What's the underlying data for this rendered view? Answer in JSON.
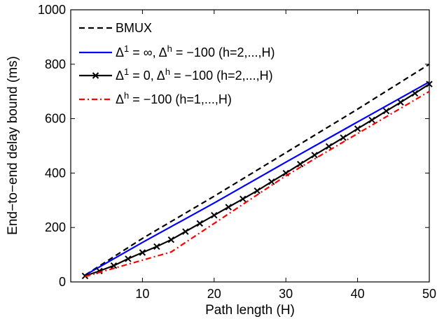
{
  "chart_data": {
    "type": "line",
    "title": "",
    "xlabel": "Path length (H)",
    "ylabel": "End−to−end delay bound (ms)",
    "xlim": [
      0,
      50
    ],
    "ylim": [
      0,
      1000
    ],
    "xticks": [
      10,
      20,
      30,
      40,
      50
    ],
    "yticks": [
      0,
      200,
      400,
      600,
      800,
      1000
    ],
    "grid": false,
    "legend_position": "top-left",
    "series": [
      {
        "name": "BMUX",
        "legend": {
          "a": "BMUX"
        },
        "color": "#000000",
        "style": "dashed",
        "marker": "none",
        "x": [
          2,
          10,
          20,
          30,
          40,
          50
        ],
        "y": [
          25,
          160,
          315,
          475,
          635,
          800
        ]
      },
      {
        "name": "Δ1 = ∞, Δh = −100 (h=2,...,H)",
        "legend": {
          "a": "Δ",
          "s1": "1",
          "b": " = ∞, Δ",
          "s2": "h",
          "c": " = −100 (h=2,...,H)"
        },
        "color": "#0000ff",
        "style": "solid",
        "marker": "none",
        "x": [
          2,
          10,
          20,
          30,
          40,
          50
        ],
        "y": [
          25,
          145,
          290,
          440,
          588,
          735
        ]
      },
      {
        "name": "Δ1 = 0, Δh = −100 (h=2,...,H)",
        "legend": {
          "a": "Δ",
          "s1": "1",
          "b": " = 0, Δ",
          "s2": "h",
          "c": " = −100 (h=2,...,H)"
        },
        "color": "#000000",
        "style": "solid",
        "marker": "x",
        "x": [
          2,
          4,
          6,
          8,
          10,
          12,
          14,
          16,
          18,
          20,
          22,
          24,
          26,
          28,
          30,
          32,
          34,
          36,
          38,
          40,
          42,
          44,
          46,
          48,
          50
        ],
        "y": [
          22,
          40,
          60,
          85,
          108,
          130,
          155,
          185,
          215,
          245,
          275,
          305,
          335,
          368,
          400,
          433,
          466,
          498,
          530,
          563,
          595,
          628,
          660,
          693,
          727
        ]
      },
      {
        "name": "Δh = −100 (h=1,...,H)",
        "legend": {
          "a": "Δ",
          "s1": "h",
          "b": " = −100 (h=1,...,H)"
        },
        "color": "#ff0000",
        "style": "dashdot",
        "marker": "none",
        "x": [
          2,
          6,
          10,
          14,
          20,
          30,
          40,
          50
        ],
        "y": [
          20,
          50,
          80,
          110,
          215,
          390,
          545,
          700
        ]
      }
    ]
  }
}
